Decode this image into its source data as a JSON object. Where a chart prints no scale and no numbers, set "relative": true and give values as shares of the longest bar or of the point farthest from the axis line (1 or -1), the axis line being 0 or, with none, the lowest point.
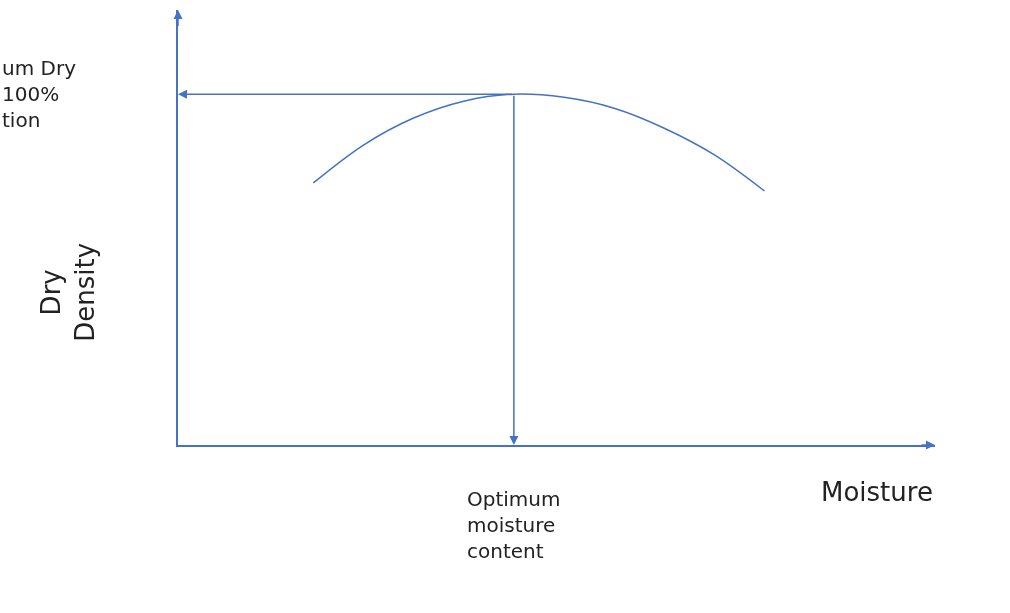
{
  "chart_data": {
    "type": "line",
    "relative": true,
    "xlabel": "Moisture",
    "color": "#4472c4",
    "marker": "none",
    "categories": [
      null,
      null,
      null,
      null,
      null,
      null,
      null,
      null,
      null,
      null
    ],
    "values": [
      0.747,
      0.855,
      0.932,
      0.98,
      1.0,
      0.991,
      0.96,
      0.903,
      0.827,
      0.724
    ],
    "annotations": [
      "Optimum\nmoisture\ncontent",
      "um Dry\n100%\ntion",
      "Dry\nDensity"
    ]
  }
}
